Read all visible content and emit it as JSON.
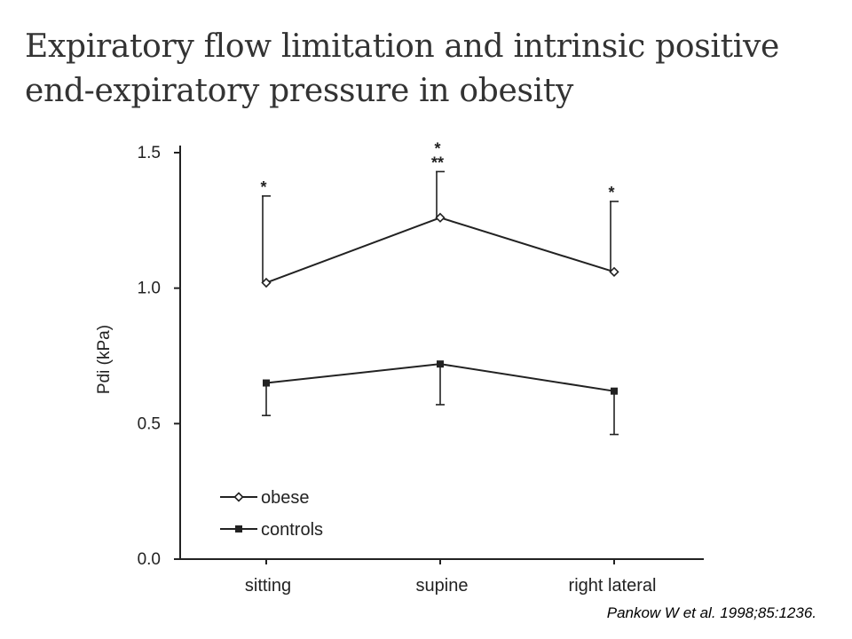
{
  "slide": {
    "title_line1": "Expiratory flow limitation and intrinsic positive",
    "title_line2": "end-expiratory pressure in obesity",
    "citation": "Pankow W et al. 1998;85:1236."
  },
  "chart_data": {
    "type": "line",
    "title": "",
    "xlabel": "",
    "ylabel": "Pdi (kPa)",
    "ylim": [
      0,
      1.5
    ],
    "yticks": [
      "0.0",
      "0.5",
      "1.0",
      "1.5"
    ],
    "ytick_values": [
      0,
      0.5,
      1.0,
      1.5
    ],
    "categories": [
      "sitting",
      "supine",
      "right lateral"
    ],
    "grid": false,
    "legend_position": "bottom-left",
    "series": [
      {
        "name": "obese",
        "marker": "open-diamond",
        "values": [
          1.02,
          1.26,
          1.06
        ],
        "error_upper": [
          1.34,
          1.43,
          1.32
        ],
        "annotations": [
          "*",
          "*\n**",
          "*"
        ]
      },
      {
        "name": "controls",
        "marker": "filled-square",
        "values": [
          0.65,
          0.72,
          0.62
        ],
        "error_lower": [
          0.53,
          0.57,
          0.46
        ],
        "annotations": [
          "",
          "",
          ""
        ]
      }
    ],
    "color": "#222222"
  }
}
